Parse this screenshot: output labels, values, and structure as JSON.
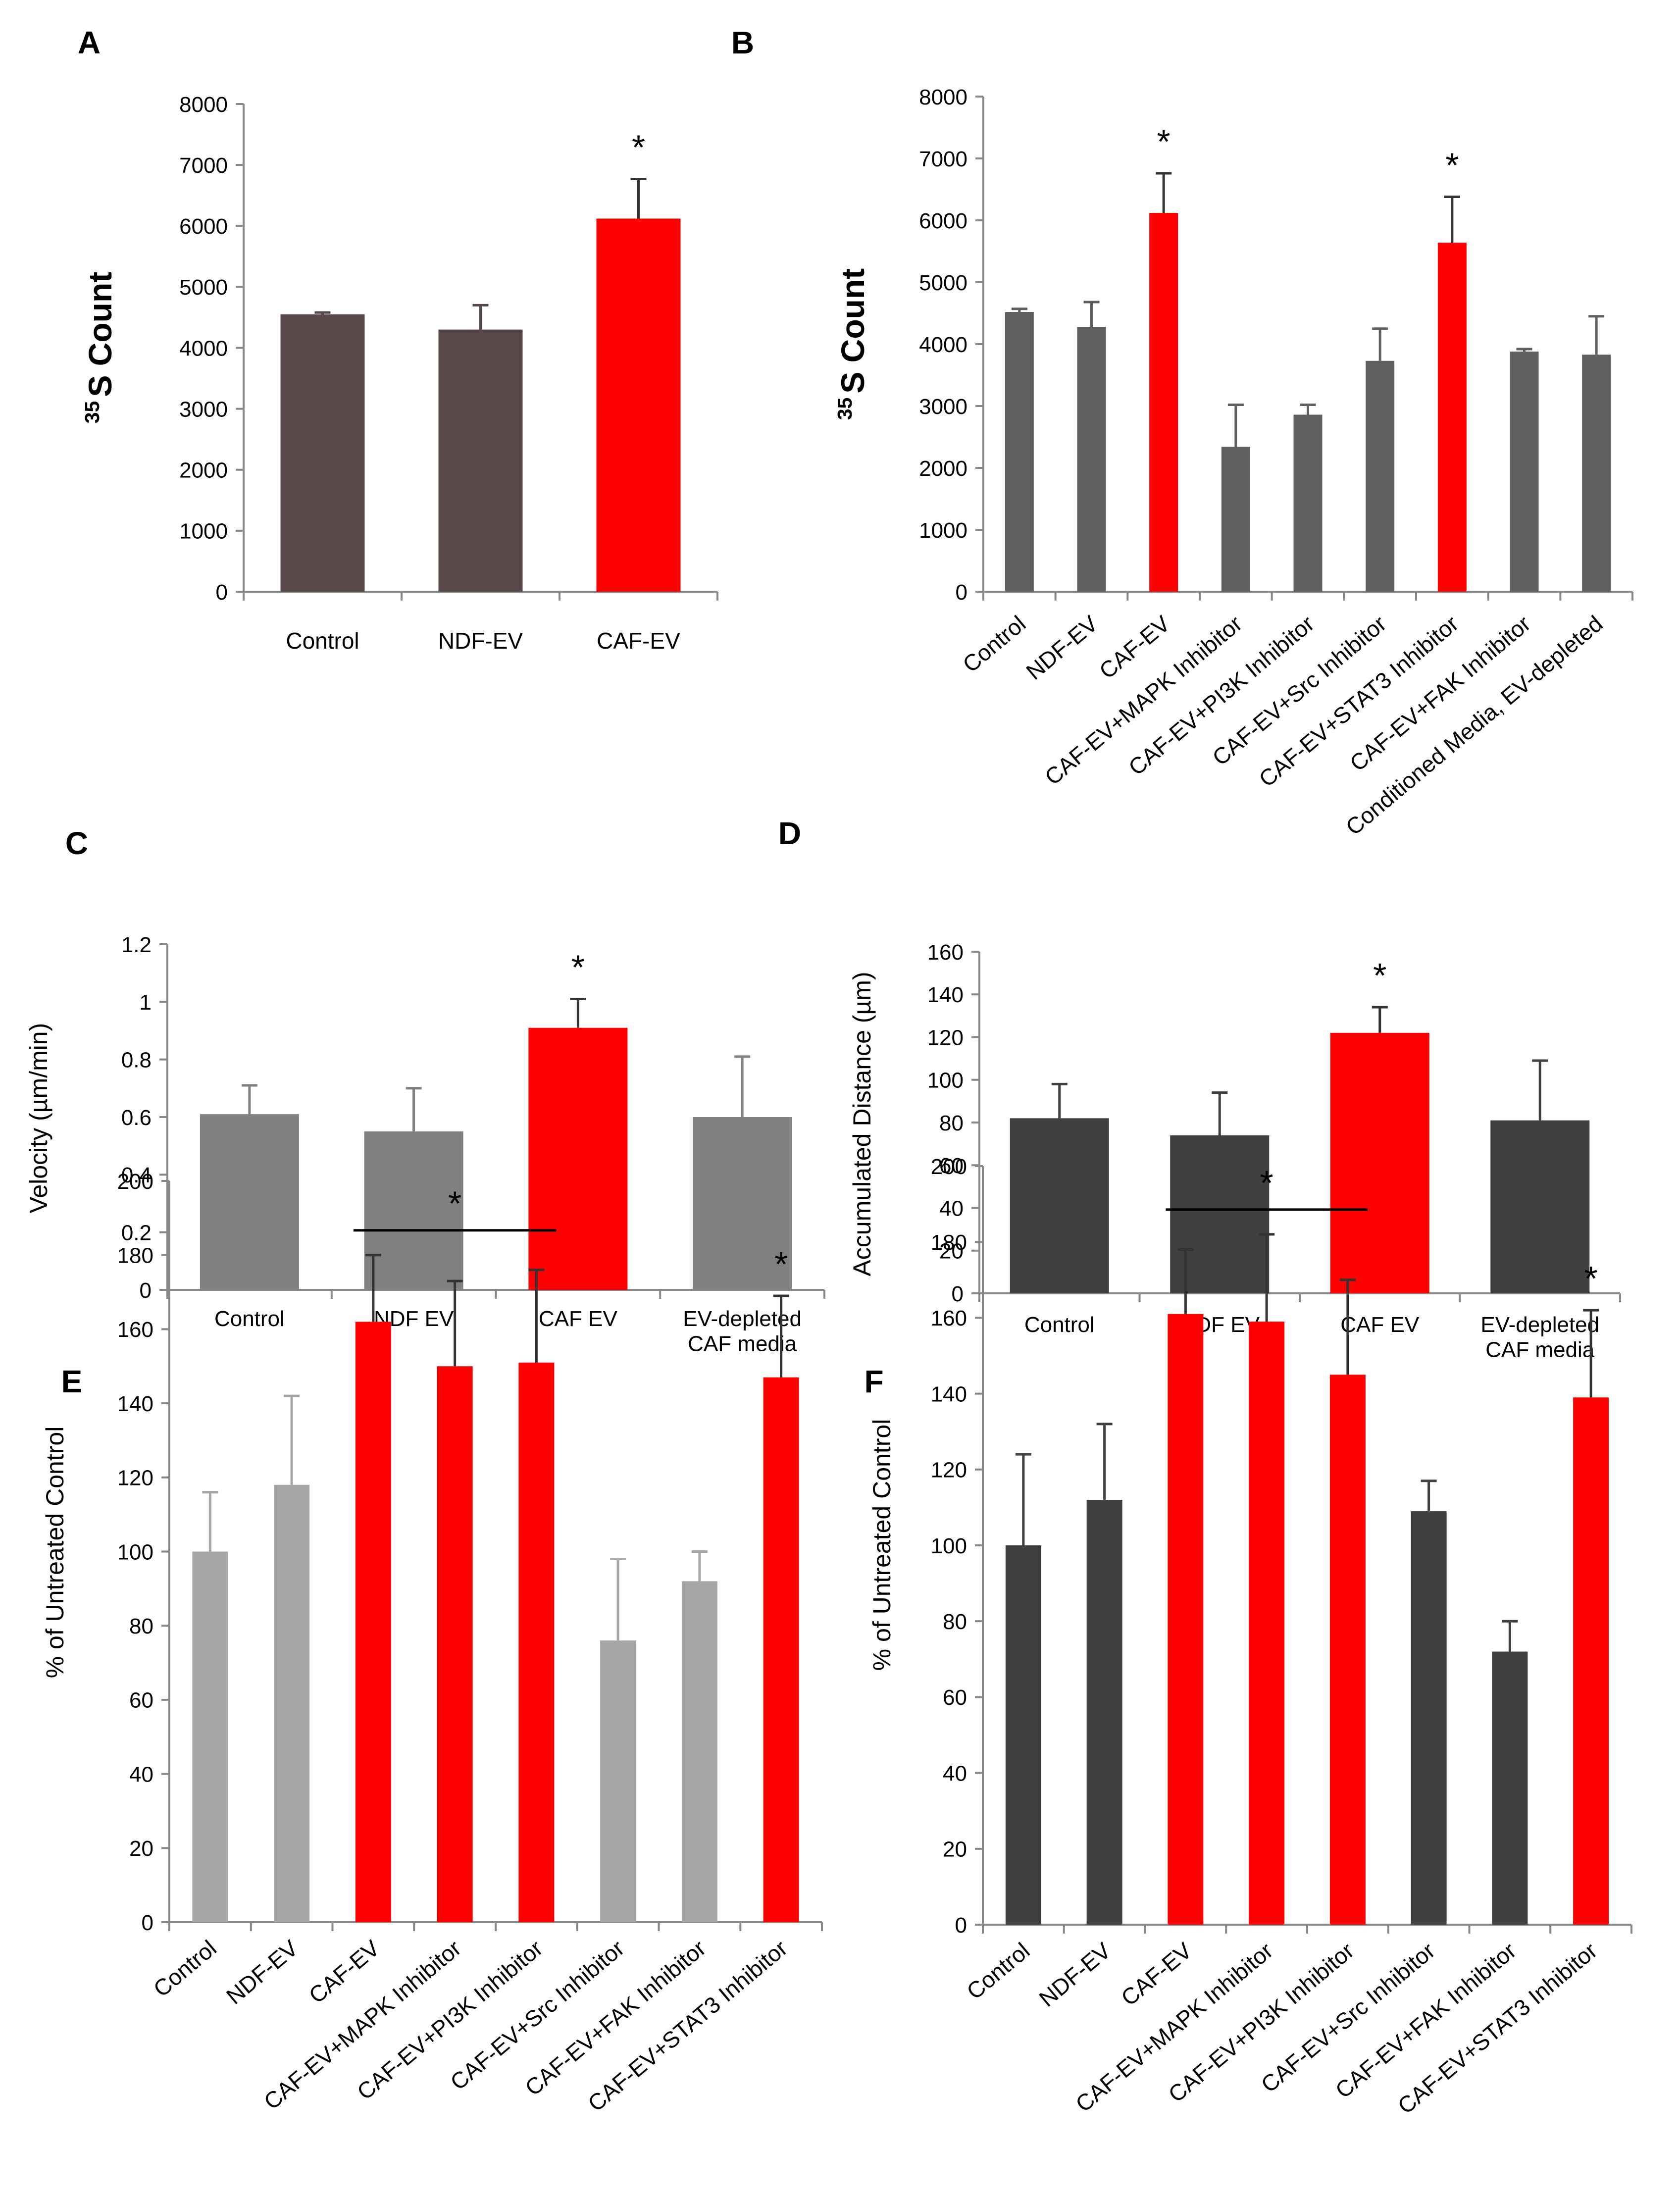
{
  "chart_data": [
    {
      "id": "A",
      "type": "bar",
      "panel_label": "A",
      "title": "",
      "ylabel_prefix": "35",
      "ylabel": "S Count",
      "ylim": [
        0,
        8000
      ],
      "yticks": [
        0,
        1000,
        2000,
        3000,
        4000,
        5000,
        6000,
        7000,
        8000
      ],
      "categories": [
        "Control",
        "NDF-EV",
        "CAF-EV"
      ],
      "values": [
        4550,
        4300,
        6120
      ],
      "errors": [
        30,
        400,
        650
      ],
      "colors": [
        "#574849",
        "#574849",
        "#ff0000"
      ],
      "annotations": [
        {
          "text": "*",
          "category": 2
        }
      ]
    },
    {
      "id": "B",
      "type": "bar",
      "panel_label": "B",
      "title": "",
      "ylabel_prefix": "35",
      "ylabel": "S Count",
      "ylim": [
        0,
        8000
      ],
      "yticks": [
        0,
        1000,
        2000,
        3000,
        4000,
        5000,
        6000,
        7000,
        8000
      ],
      "categories": [
        "Control",
        "NDF-EV",
        "CAF-EV",
        "CAF-EV+MAPK Inhibitor",
        "CAF-EV+PI3K Inhibitor",
        "CAF-EV+Src Inhibitor",
        "CAF-EV+STAT3 Inhibitor",
        "CAF-EV+FAK Inhibitor",
        "Conditioned Media, EV-depleted"
      ],
      "values": [
        4520,
        4280,
        6120,
        2340,
        2860,
        3730,
        5640,
        3880,
        3830
      ],
      "errors": [
        50,
        400,
        640,
        680,
        160,
        520,
        740,
        40,
        620
      ],
      "colors": [
        "#5f5f5f",
        "#5f5f5f",
        "#ff0000",
        "#5f5f5f",
        "#5f5f5f",
        "#5f5f5f",
        "#ff0000",
        "#5f5f5f",
        "#5f5f5f"
      ],
      "annotations": [
        {
          "text": "*",
          "category": 2
        },
        {
          "text": "*",
          "category": 6
        }
      ]
    },
    {
      "id": "C",
      "type": "bar",
      "panel_label": "C",
      "title": "",
      "ylabel": "Velocity (µm/min)",
      "ylim": [
        0,
        1.2
      ],
      "yticks": [
        "0",
        "0.2",
        "0.4",
        "0.6",
        "0.8",
        "1",
        "1.2"
      ],
      "categories": [
        "Control",
        "NDF EV",
        "CAF EV",
        "EV-depleted\nCAF media"
      ],
      "values": [
        0.61,
        0.55,
        0.91,
        0.6
      ],
      "errors": [
        0.1,
        0.15,
        0.1,
        0.21
      ],
      "colors": [
        "#808080",
        "#808080",
        "#ff0000",
        "#808080"
      ],
      "annotations": [
        {
          "text": "*",
          "category": 2
        }
      ]
    },
    {
      "id": "D",
      "type": "bar",
      "panel_label": "D",
      "title": "",
      "ylabel": "Accumulated Distance (µm)",
      "ylim": [
        0,
        160
      ],
      "yticks": [
        "0",
        "20",
        "40",
        "60",
        "80",
        "100",
        "120",
        "140",
        "160"
      ],
      "categories": [
        "Control",
        "NDF EV",
        "CAF EV",
        "EV-depleted\nCAF media"
      ],
      "values": [
        82,
        74,
        122,
        81
      ],
      "errors": [
        16,
        20,
        12,
        28
      ],
      "colors": [
        "#404040",
        "#404040",
        "#ff0000",
        "#404040"
      ],
      "annotations": [
        {
          "text": "*",
          "category": 2
        }
      ]
    },
    {
      "id": "E",
      "type": "bar",
      "panel_label": "E",
      "title": "",
      "ylabel": "% of  Untreated Control",
      "ylim": [
        0,
        200
      ],
      "yticks": [
        "0",
        "20",
        "40",
        "60",
        "80",
        "100",
        "120",
        "140",
        "160",
        "180",
        "200"
      ],
      "categories": [
        "Control",
        "NDF-EV",
        "CAF-EV",
        "CAF-EV+MAPK Inhibitor",
        "CAF-EV+PI3K Inhibitor",
        "CAF-EV+Src Inhibitor",
        "CAF-EV+FAK Inhibitor",
        "CAF-EV+STAT3 Inhibitor"
      ],
      "values": [
        100,
        118,
        162,
        150,
        151,
        76,
        92,
        147
      ],
      "errors": [
        16,
        24,
        18,
        23,
        25,
        22,
        8,
        22
      ],
      "colors": [
        "#a6a6a6",
        "#a6a6a6",
        "#ff0000",
        "#ff0000",
        "#ff0000",
        "#a6a6a6",
        "#a6a6a6",
        "#ff0000"
      ],
      "annotations": [
        {
          "text": "*",
          "bracket": [
            2,
            4
          ]
        },
        {
          "text": "*",
          "category": 7
        }
      ]
    },
    {
      "id": "F",
      "type": "bar",
      "panel_label": "F",
      "title": "",
      "ylabel": "% of  Untreated Control",
      "ylim": [
        0,
        200
      ],
      "yticks": [
        "0",
        "20",
        "40",
        "60",
        "80",
        "100",
        "120",
        "140",
        "160",
        "180",
        "200"
      ],
      "categories": [
        "Control",
        "NDF-EV",
        "CAF-EV",
        "CAF-EV+MAPK Inhibitor",
        "CAF-EV+PI3K Inhibitor",
        "CAF-EV+Src Inhibitor",
        "CAF-EV+FAK Inhibitor",
        "CAF-EV+STAT3 Inhibitor"
      ],
      "values": [
        100,
        112,
        161,
        159,
        145,
        109,
        72,
        139
      ],
      "errors": [
        24,
        20,
        17,
        23,
        25,
        8,
        8,
        23
      ],
      "colors": [
        "#404040",
        "#404040",
        "#ff0000",
        "#ff0000",
        "#ff0000",
        "#404040",
        "#404040",
        "#ff0000"
      ],
      "annotations": [
        {
          "text": "*",
          "bracket": [
            2,
            4
          ]
        },
        {
          "text": "*",
          "category": 7
        }
      ]
    }
  ]
}
